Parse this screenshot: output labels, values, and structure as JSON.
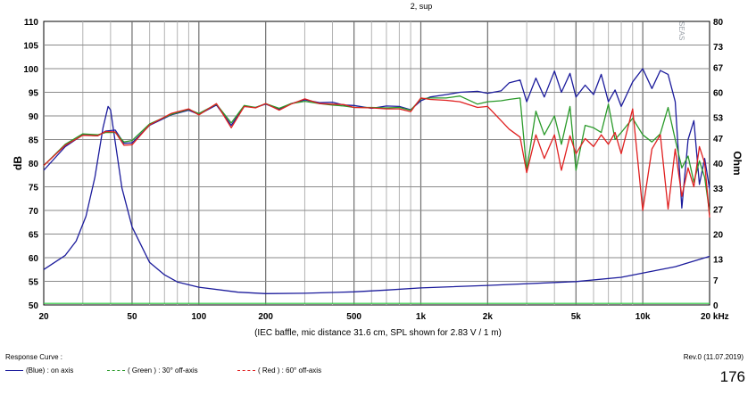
{
  "chart_data": {
    "type": "line",
    "title": "",
    "subtitle_partial": "2, sup",
    "caption": "(IEC baffle, mic distance 31.6 cm, SPL shown for 2.83 V / 1 m)",
    "ylabel": "dB",
    "y2label": "Ohm",
    "xscale": "log",
    "xlim": [
      20,
      20000
    ],
    "ylim": [
      50,
      110
    ],
    "y2lim": [
      0,
      80
    ],
    "grid": true,
    "x_ticks": [
      {
        "v": 20,
        "t": "20"
      },
      {
        "v": 50,
        "t": "50"
      },
      {
        "v": 100,
        "t": "100"
      },
      {
        "v": 200,
        "t": "200"
      },
      {
        "v": 500,
        "t": "500"
      },
      {
        "v": 1000,
        "t": "1k"
      },
      {
        "v": 2000,
        "t": "2k"
      },
      {
        "v": 5000,
        "t": "5k"
      },
      {
        "v": 10000,
        "t": "10k"
      },
      {
        "v": 20000,
        "t": "20 kHz"
      }
    ],
    "y_ticks": [
      110,
      105,
      100,
      95,
      90,
      85,
      80,
      75,
      70,
      65,
      60,
      55,
      50
    ],
    "y2_ticks": [
      80,
      73,
      67,
      60,
      53,
      47,
      40,
      33,
      27,
      20,
      13,
      7,
      0
    ],
    "series": [
      {
        "name": "(Blue) : on axis",
        "axis": "left",
        "color": "#1c1c9c",
        "x": [
          20,
          25,
          30,
          35,
          38,
          42,
          46,
          50,
          60,
          75,
          90,
          100,
          120,
          140,
          160,
          180,
          200,
          230,
          260,
          300,
          350,
          400,
          450,
          500,
          600,
          700,
          800,
          900,
          1000,
          1100,
          1300,
          1500,
          1800,
          2000,
          2300,
          2500,
          2800,
          3000,
          3300,
          3600,
          4000,
          4300,
          4700,
          5000,
          5500,
          6000,
          6500,
          7000,
          7500,
          8000,
          9000,
          10000,
          11000,
          12000,
          13000,
          14000,
          15000,
          16000,
          17000,
          18000,
          19000,
          20000
        ],
        "y": [
          78.5,
          83.5,
          86,
          85.8,
          86.8,
          87,
          84.2,
          84.3,
          88,
          90.2,
          91.2,
          90.3,
          92.3,
          88,
          92,
          91.8,
          92.5,
          91.4,
          92.6,
          93.4,
          92.8,
          92.9,
          92.3,
          92.2,
          91.6,
          92.1,
          92,
          91.3,
          93.2,
          94,
          94.5,
          95,
          95.2,
          94.8,
          95.3,
          97,
          97.6,
          93,
          98,
          94,
          99.5,
          95,
          99,
          94,
          96.5,
          94.5,
          98.8,
          93,
          95.5,
          92,
          97.2,
          100,
          95.8,
          99.6,
          98.8,
          93,
          70.5,
          85,
          89,
          75.5,
          81,
          74.5
        ]
      },
      {
        "name": "( Green ) : 30° off-axis",
        "axis": "left",
        "color": "#2a9a2a",
        "x": [
          20,
          25,
          30,
          35,
          38,
          42,
          46,
          50,
          60,
          75,
          90,
          100,
          120,
          140,
          160,
          180,
          200,
          230,
          260,
          300,
          350,
          400,
          450,
          500,
          600,
          700,
          800,
          900,
          1000,
          1100,
          1300,
          1500,
          1800,
          2000,
          2300,
          2500,
          2800,
          3000,
          3300,
          3600,
          4000,
          4300,
          4700,
          5000,
          5500,
          6000,
          6500,
          7000,
          7500,
          8000,
          9000,
          10000,
          11000,
          12000,
          13000,
          14000,
          15000,
          16000,
          17000,
          18000,
          19000,
          20000
        ],
        "y": [
          79.5,
          84,
          86.2,
          86,
          86.5,
          86.5,
          84.5,
          84.8,
          88.3,
          90.3,
          91.4,
          90.5,
          92.5,
          88.5,
          92.2,
          91.8,
          92.6,
          91.6,
          92.6,
          93.1,
          92.6,
          92.3,
          92.1,
          91.8,
          91.8,
          91.7,
          91.8,
          91.2,
          93.6,
          93.8,
          93.8,
          94.2,
          92.5,
          93,
          93.2,
          93.5,
          93.8,
          78.5,
          91,
          86,
          90,
          84,
          92,
          78.5,
          88,
          87.5,
          86.5,
          92.5,
          85,
          86.5,
          89.5,
          86,
          84.5,
          86.2,
          91.8,
          85,
          79,
          81.5,
          76,
          80.5,
          77,
          69.5
        ]
      },
      {
        "name": "( Red ) : 60° off-axis",
        "axis": "left",
        "color": "#e02020",
        "x": [
          20,
          25,
          30,
          35,
          38,
          42,
          46,
          50,
          60,
          75,
          90,
          100,
          120,
          140,
          160,
          180,
          200,
          230,
          260,
          300,
          350,
          400,
          450,
          500,
          600,
          700,
          800,
          900,
          1000,
          1100,
          1300,
          1500,
          1800,
          2000,
          2300,
          2500,
          2800,
          3000,
          3300,
          3600,
          4000,
          4300,
          4700,
          5000,
          5500,
          6000,
          6500,
          7000,
          7500,
          8000,
          9000,
          10000,
          11000,
          12000,
          13000,
          14000,
          15000,
          16000,
          17000,
          18000,
          19000,
          20000
        ],
        "y": [
          79.5,
          83.8,
          85.9,
          85.8,
          86.7,
          86.6,
          83.8,
          83.9,
          88.1,
          90.5,
          91.5,
          90.2,
          92.6,
          87.5,
          92,
          91.7,
          92.6,
          91.2,
          92.5,
          93.6,
          92.6,
          92.5,
          92.4,
          91.8,
          91.7,
          91.5,
          91.5,
          90.9,
          93.8,
          93.5,
          93.3,
          93,
          91.8,
          92,
          89,
          87.2,
          85.5,
          78,
          86,
          81,
          86,
          78.5,
          85.8,
          82,
          85.2,
          83.5,
          86,
          84,
          86.5,
          82,
          91.5,
          70,
          83,
          86,
          70.3,
          83,
          73,
          79,
          75,
          83.5,
          80,
          68.5
        ]
      },
      {
        "name": "Impedance",
        "axis": "right",
        "color": "#1c1c9c",
        "x": [
          20,
          25,
          28,
          31,
          34,
          37,
          39,
          40,
          42,
          45,
          50,
          60,
          70,
          80,
          100,
          150,
          200,
          300,
          500,
          700,
          1000,
          2000,
          5000,
          8000,
          10000,
          14000,
          20000
        ],
        "y": [
          10,
          14,
          18,
          25,
          36,
          50,
          56,
          55,
          46,
          33,
          22,
          12,
          8.5,
          6.5,
          5,
          3.6,
          3.2,
          3.3,
          3.7,
          4.2,
          4.8,
          5.5,
          6.6,
          7.8,
          9,
          10.8,
          13.7
        ]
      }
    ],
    "markers": [
      {
        "name": "baseline",
        "axis": "right",
        "color": "#2ecc40",
        "y": 0.2
      }
    ]
  },
  "legend": {
    "title": "Response Curve :",
    "items": [
      {
        "label": "(Blue) : on axis",
        "color": "#1c1c9c",
        "style": "solid"
      },
      {
        "label": "( Green ) : 30° off-axis",
        "color": "#2a9a2a",
        "style": "dashed"
      },
      {
        "label": "( Red ) : 60° off-axis",
        "color": "#e02020",
        "style": "dashed"
      }
    ]
  },
  "revision": "Rev.0 (11.07.2019)",
  "page_number": "176",
  "vendor_mark": "SEAS"
}
